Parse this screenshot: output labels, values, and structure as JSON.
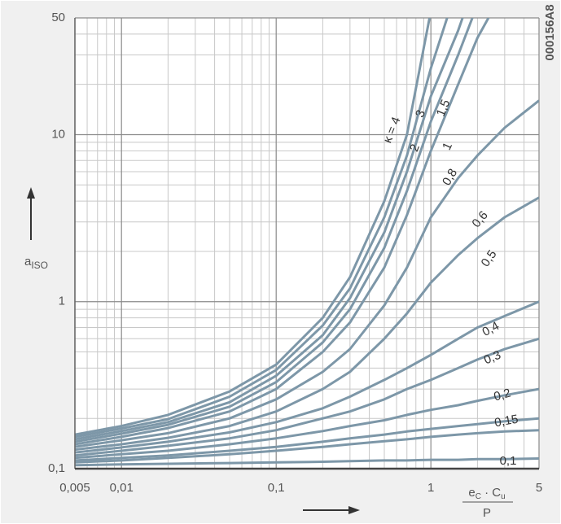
{
  "chart_data": {
    "type": "line",
    "log_x": true,
    "log_y": true,
    "grid": true,
    "figure_code": "000156A8",
    "ylabel": {
      "main": "a",
      "sub": "ISO"
    },
    "xlabel": {
      "numerator": [
        {
          "main": "e",
          "sub": "C"
        },
        {
          "main": " · C",
          "sub": "u"
        }
      ],
      "denominator": "P"
    },
    "xlim": [
      0.005,
      5
    ],
    "xticks": [
      {
        "value": 0.005,
        "label": "0,005"
      },
      {
        "value": 0.01,
        "label": "0,01"
      },
      {
        "value": 0.1,
        "label": "0,1"
      },
      1,
      5
    ],
    "xminorticks": [
      0.006,
      0.007,
      0.008,
      0.009,
      0.02,
      0.03,
      0.04,
      0.05,
      0.06,
      0.07,
      0.08,
      0.09,
      0.2,
      0.3,
      0.4,
      0.5,
      0.6,
      0.7,
      0.8,
      0.9,
      2,
      3,
      4
    ],
    "ylim": [
      0.1,
      50
    ],
    "yticks": [
      {
        "value": 0.1,
        "label": "0,1"
      },
      1,
      10,
      50
    ],
    "yminorticks": [
      0.2,
      0.3,
      0.4,
      0.5,
      0.6,
      0.7,
      0.8,
      0.9,
      2,
      3,
      4,
      5,
      6,
      7,
      8,
      9,
      20,
      30,
      40
    ],
    "x": [
      0.005,
      0.01,
      0.02,
      0.05,
      0.1,
      0.2,
      0.3,
      0.5,
      0.7,
      1,
      1.5,
      2,
      3,
      5
    ],
    "series": [
      {
        "name": "κ = 4",
        "color": "#7d97a8",
        "values": [
          0.16,
          0.18,
          0.21,
          0.29,
          0.42,
          0.8,
          1.4,
          4,
          10,
          55,
          null,
          null,
          null,
          null
        ]
      },
      {
        "name": "3",
        "color": "#7d97a8",
        "values": [
          0.155,
          0.174,
          0.198,
          0.27,
          0.39,
          0.72,
          1.2,
          3.2,
          7.5,
          25,
          80,
          null,
          null,
          null
        ]
      },
      {
        "name": "2",
        "color": "#7d97a8",
        "values": [
          0.15,
          0.168,
          0.19,
          0.25,
          0.36,
          0.63,
          1.05,
          2.6,
          6,
          17,
          42,
          90,
          null,
          null
        ]
      },
      {
        "name": "1,5",
        "color": "#7d97a8",
        "values": [
          0.145,
          0.162,
          0.183,
          0.235,
          0.33,
          0.57,
          0.9,
          2.1,
          4.6,
          12,
          30,
          60,
          null,
          null
        ]
      },
      {
        "name": "1",
        "color": "#7d97a8",
        "values": [
          0.14,
          0.155,
          0.175,
          0.22,
          0.3,
          0.5,
          0.75,
          1.6,
          3.3,
          8,
          20,
          38,
          75,
          null
        ]
      },
      {
        "name": "0,8",
        "color": "#7d97a8",
        "values": [
          0.135,
          0.148,
          0.163,
          0.2,
          0.26,
          0.38,
          0.52,
          0.95,
          1.6,
          3.2,
          5.5,
          7.5,
          11,
          16
        ]
      },
      {
        "name": "0,6",
        "color": "#7d97a8",
        "values": [
          0.13,
          0.14,
          0.153,
          0.18,
          0.22,
          0.3,
          0.38,
          0.6,
          0.85,
          1.3,
          1.9,
          2.4,
          3.2,
          4.2
        ]
      },
      {
        "name": "0,5",
        "color": "#7d97a8",
        "values": [
          0.125,
          0.134,
          0.145,
          0.165,
          0.19,
          0.23,
          0.27,
          0.34,
          0.4,
          0.48,
          0.6,
          0.7,
          0.82,
          1.0
        ]
      },
      {
        "name": "0,4",
        "color": "#7d97a8",
        "values": [
          0.12,
          0.128,
          0.137,
          0.152,
          0.17,
          0.2,
          0.22,
          0.26,
          0.3,
          0.34,
          0.4,
          0.45,
          0.52,
          0.6
        ]
      },
      {
        "name": "0,3",
        "color": "#7d97a8",
        "values": [
          0.116,
          0.122,
          0.128,
          0.14,
          0.152,
          0.168,
          0.18,
          0.195,
          0.21,
          0.225,
          0.24,
          0.255,
          0.275,
          0.3
        ]
      },
      {
        "name": "0,2",
        "color": "#7d97a8",
        "values": [
          0.112,
          0.116,
          0.12,
          0.128,
          0.135,
          0.145,
          0.152,
          0.16,
          0.167,
          0.173,
          0.18,
          0.185,
          0.192,
          0.2
        ]
      },
      {
        "name": "0,15",
        "color": "#7d97a8",
        "values": [
          0.109,
          0.112,
          0.116,
          0.122,
          0.128,
          0.135,
          0.14,
          0.146,
          0.15,
          0.155,
          0.16,
          0.163,
          0.167,
          0.17
        ]
      },
      {
        "name": "0,1",
        "color": "#7d97a8",
        "values": [
          0.105,
          0.106,
          0.107,
          0.108,
          0.109,
          0.11,
          0.111,
          0.112,
          0.112,
          0.113,
          0.113,
          0.114,
          0.114,
          0.115
        ]
      }
    ]
  }
}
